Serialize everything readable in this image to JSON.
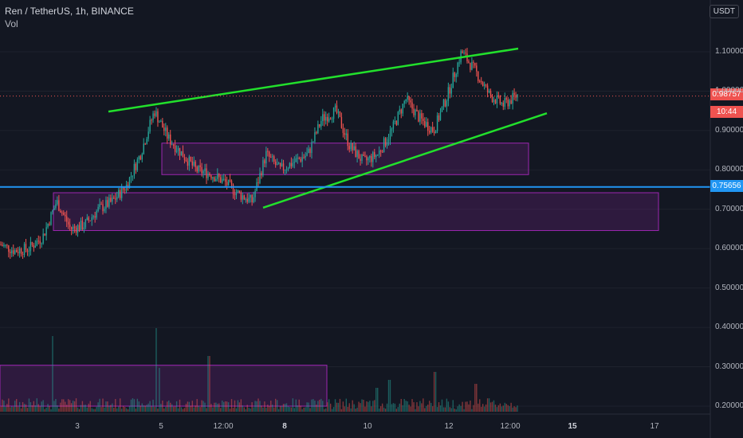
{
  "header": {
    "symbol_line": "Ren / TetherUS, 1h, BINANCE",
    "volume_label": "Vol"
  },
  "currency_badge": "USDT",
  "price_tags": {
    "current_price": "0.98757",
    "countdown": "10:44",
    "level_price": "0.75656"
  },
  "colors": {
    "background": "#131722",
    "up": "#26a69a",
    "down": "#ef5350",
    "trendline": "#22e02c",
    "zone_border": "#9c27b0",
    "zone_fill": "rgba(156,39,176,0.20)",
    "level_line": "#2196f3",
    "current_price": "#ef5350"
  },
  "chart_data": {
    "type": "candlestick",
    "series_name": "Ren / TetherUS",
    "timeframe": "1h",
    "exchange": "BINANCE",
    "ylim": [
      0.19,
      1.2
    ],
    "y_ticks": [
      "1.10000",
      "1.00000",
      "0.90000",
      "0.80000",
      "0.70000",
      "0.60000",
      "0.50000",
      "0.40000",
      "0.30000",
      "0.20000"
    ],
    "x_ticks": [
      {
        "label": "3",
        "bold": false
      },
      {
        "label": "5",
        "bold": false
      },
      {
        "label": "12:00",
        "bold": false
      },
      {
        "label": "8",
        "bold": true
      },
      {
        "label": "10",
        "bold": false
      },
      {
        "label": "12",
        "bold": false
      },
      {
        "label": "12:00",
        "bold": false
      },
      {
        "label": "15",
        "bold": true
      },
      {
        "label": "17",
        "bold": false
      }
    ],
    "price_path": [
      0.61,
      0.595,
      0.6,
      0.63,
      0.72,
      0.65,
      0.66,
      0.7,
      0.72,
      0.76,
      0.84,
      0.95,
      0.88,
      0.84,
      0.8,
      0.79,
      0.77,
      0.74,
      0.72,
      0.84,
      0.8,
      0.82,
      0.84,
      0.93,
      0.95,
      0.86,
      0.82,
      0.84,
      0.9,
      0.98,
      0.93,
      0.9,
      0.99,
      1.1,
      1.05,
      0.99,
      0.965,
      0.99
    ],
    "current_price": 0.98757,
    "key_level": 0.75656,
    "trendlines": [
      {
        "name": "upper-resistance",
        "p1": 0.948,
        "p2": 1.108
      },
      {
        "name": "lower-support",
        "p1": 0.704,
        "p2": 0.944
      }
    ],
    "zones": [
      {
        "name": "upper-zone",
        "top": 0.868,
        "bottom": 0.788
      },
      {
        "name": "lower-zone",
        "top": 0.742,
        "bottom": 0.646
      },
      {
        "name": "volume-zone",
        "top": 0.304,
        "bottom": 0.2
      }
    ]
  }
}
